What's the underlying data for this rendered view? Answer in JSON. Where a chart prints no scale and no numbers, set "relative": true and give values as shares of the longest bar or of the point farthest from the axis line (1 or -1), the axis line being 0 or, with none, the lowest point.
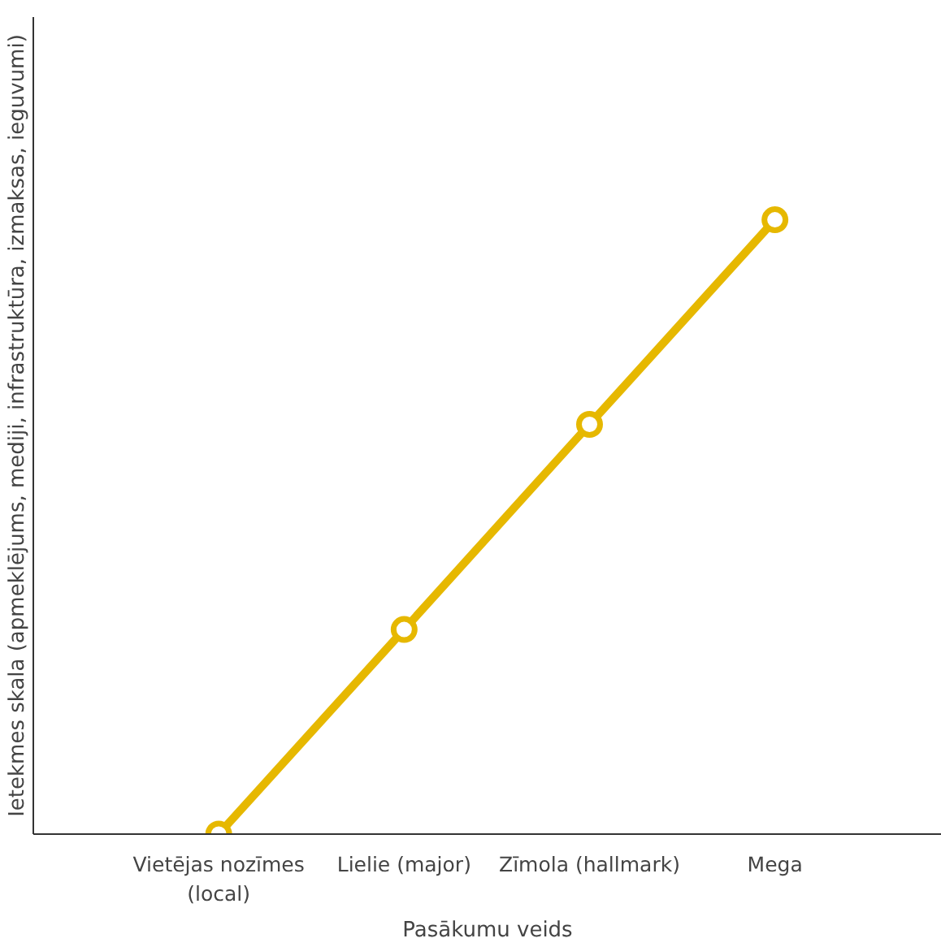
{
  "chart_data": {
    "type": "line",
    "relative": true,
    "xlabel": "Pasākumu veids",
    "ylabel": "Ietekmes skala (apmeklējums, mediji, infrastruktūra, izmaksas, ieguvumi)",
    "categories": [
      "Vietējas nozīmes\n(local)",
      "Lielie (major)",
      "Zīmola (hallmark)",
      "Mega"
    ],
    "series": [
      {
        "color": "#e6b800",
        "values": [
          0,
          0.333,
          0.667,
          1
        ]
      }
    ],
    "marker": "circle",
    "line_style": "solid",
    "grid": false
  }
}
